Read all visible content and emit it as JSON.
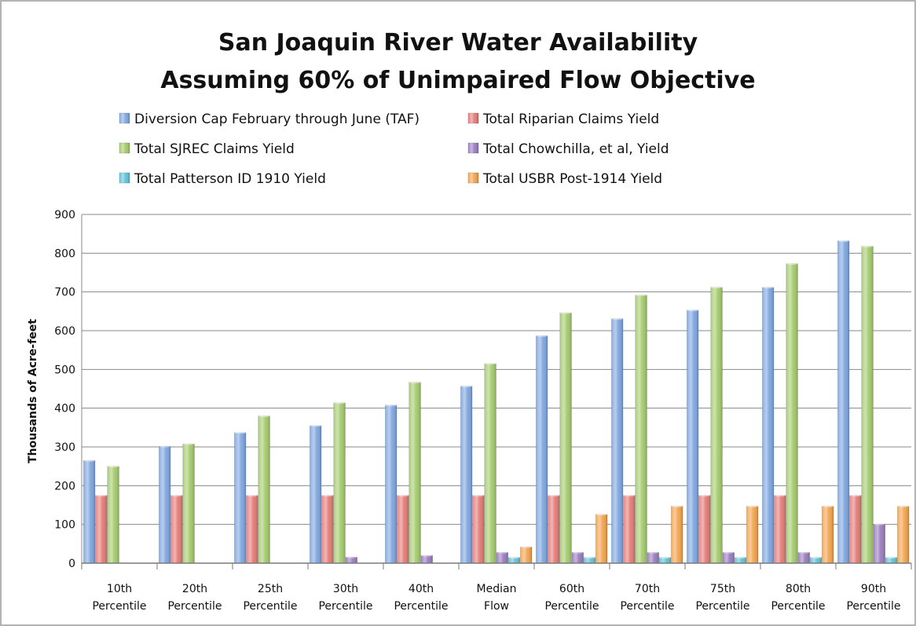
{
  "chart_data": {
    "type": "bar",
    "title_lines": [
      "San Joaquin River Water Availability",
      "Assuming 60% of Unimpaired Flow Objective"
    ],
    "xlabel": "",
    "ylabel": "Thousands of Acre-feet",
    "ylim": [
      0,
      900
    ],
    "yticks": [
      0,
      100,
      200,
      300,
      400,
      500,
      600,
      700,
      800,
      900
    ],
    "grid": true,
    "legend_position": "top",
    "categories": [
      [
        "10th",
        "Percentile"
      ],
      [
        "20th",
        "Percentile"
      ],
      [
        "25th",
        "Percentile"
      ],
      [
        "30th",
        "Percentile"
      ],
      [
        "40th",
        "Percentile"
      ],
      [
        "Median",
        "Flow"
      ],
      [
        "60th",
        "Percentile"
      ],
      [
        "70th",
        "Percentile"
      ],
      [
        "75th",
        "Percentile"
      ],
      [
        "80th",
        "Percentile"
      ],
      [
        "90th",
        "Percentile"
      ]
    ],
    "series": [
      {
        "name": "Diversion Cap February through June (TAF)",
        "color": "#7ea6e0",
        "values": [
          265,
          302,
          337,
          355,
          408,
          457,
          587,
          631,
          653,
          712,
          832
        ]
      },
      {
        "name": "Total Riparian Claims Yield",
        "color": "#e57a76",
        "values": [
          175,
          175,
          175,
          175,
          175,
          175,
          175,
          175,
          175,
          175,
          175
        ]
      },
      {
        "name": "Total SJREC Claims Yield",
        "color": "#a4cb6c",
        "values": [
          250,
          308,
          380,
          414,
          467,
          515,
          646,
          692,
          712,
          773,
          818
        ]
      },
      {
        "name": "Total Chowchilla, et al, Yield",
        "color": "#9a7cc0",
        "values": [
          0,
          0,
          0,
          16,
          20,
          28,
          28,
          28,
          28,
          28,
          101
        ]
      },
      {
        "name": "Total Patterson ID 1910 Yield",
        "color": "#5ec3d8",
        "values": [
          0,
          0,
          0,
          0,
          0,
          15,
          15,
          15,
          15,
          15,
          15
        ]
      },
      {
        "name": "Total USBR Post-1914 Yield",
        "color": "#f3a34e",
        "values": [
          0,
          0,
          0,
          0,
          0,
          42,
          126,
          147,
          147,
          147,
          147
        ]
      }
    ]
  }
}
